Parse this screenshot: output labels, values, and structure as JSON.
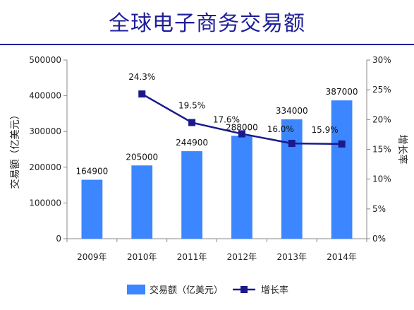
{
  "page": {
    "title": "全球电子商务交易额"
  },
  "chart_data": {
    "type": "bar",
    "categories": [
      "2009年",
      "2010年",
      "2011年",
      "2012年",
      "2013年",
      "2014年"
    ],
    "ylabel": "交易额（亿美元）",
    "ylabel_right": "增长率",
    "ylim": [
      0,
      500000
    ],
    "y_ticks": [
      "0",
      "100000",
      "200000",
      "300000",
      "400000",
      "500000"
    ],
    "y2lim": [
      0,
      30
    ],
    "y2_ticks": [
      "0%",
      "5%",
      "10%",
      "15%",
      "20%",
      "25%",
      "30%"
    ],
    "legend_position": "bottom",
    "grid": false,
    "series": [
      {
        "name": "交易额（亿美元）",
        "type": "bar",
        "axis": "left",
        "color": "#3c86ff",
        "values": [
          164900,
          205000,
          244900,
          288000,
          334000,
          387000
        ],
        "labels": [
          "164900",
          "205000",
          "244900",
          "288000",
          "334000",
          "387000"
        ]
      },
      {
        "name": "增长率",
        "type": "line",
        "axis": "right",
        "color": "#1a1a8c",
        "values": [
          null,
          24.3,
          19.5,
          17.6,
          16.0,
          15.9
        ],
        "labels": [
          "",
          "24.3%",
          "19.5%",
          "17.6%",
          "16.0%",
          "15.9%"
        ]
      }
    ]
  }
}
